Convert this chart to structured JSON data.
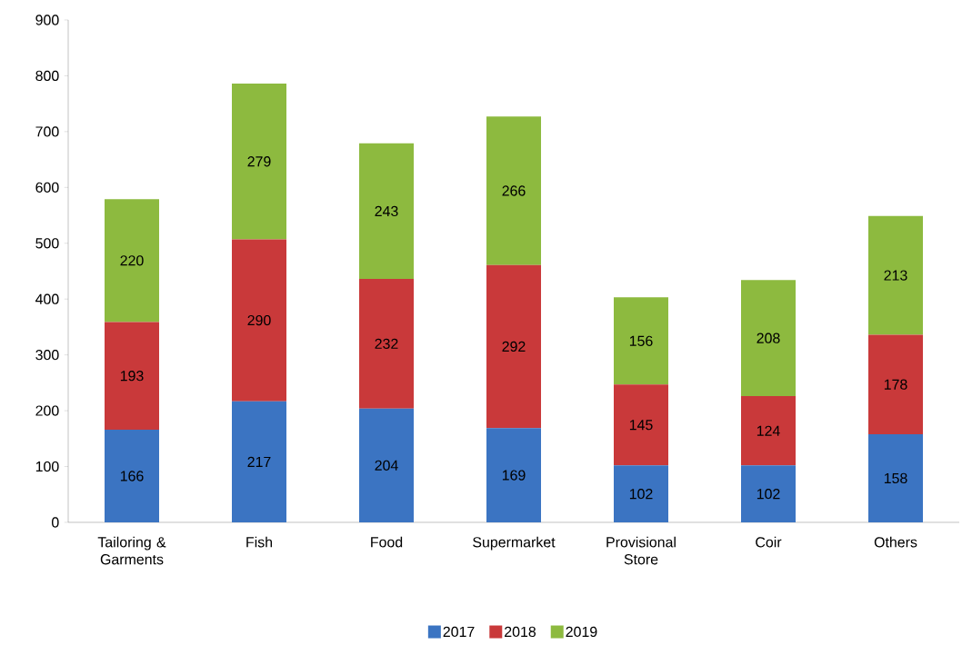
{
  "chart_data": {
    "type": "bar",
    "stacked": true,
    "categories": [
      "Tailoring & Garments",
      "Fish",
      "Food",
      "Supermarket",
      "Provisional Store",
      "Coir",
      "Others"
    ],
    "series": [
      {
        "name": "2017",
        "color": "#3b74c2",
        "values": [
          166,
          217,
          204,
          169,
          102,
          102,
          158
        ]
      },
      {
        "name": "2018",
        "color": "#c9393a",
        "values": [
          193,
          290,
          232,
          292,
          145,
          124,
          178
        ]
      },
      {
        "name": "2019",
        "color": "#8dba3f",
        "values": [
          220,
          279,
          243,
          266,
          156,
          208,
          213
        ]
      }
    ],
    "ylim": [
      0,
      900
    ],
    "yticks": [
      0,
      100,
      200,
      300,
      400,
      500,
      600,
      700,
      800,
      900
    ],
    "data_labels": true,
    "grid": false,
    "legend": "bottom"
  }
}
